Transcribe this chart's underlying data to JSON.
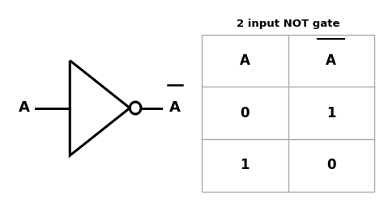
{
  "background_color": "#ffffff",
  "gate_color": "#000000",
  "gate_linewidth": 2.2,
  "label_fontsize": 13,
  "table_title": "2 input NOT gate",
  "table_title_fontsize": 9.5,
  "cell_fontsize": 12,
  "table_line_color": "#aaaaaa",
  "col_A_values": [
    "0",
    "1"
  ],
  "col_Abar_values": [
    "1",
    "0"
  ]
}
